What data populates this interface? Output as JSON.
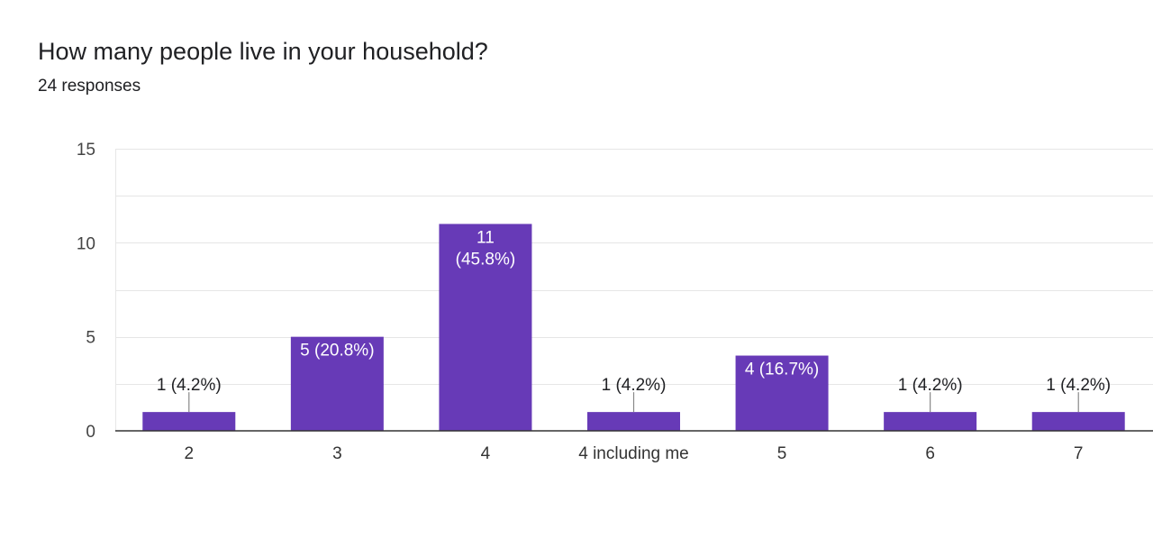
{
  "question": {
    "title": "How many people live in your household?",
    "responses": "24 responses"
  },
  "colors": {
    "bar": "#673ab7",
    "grid": "#e6e6e6",
    "axis": "#333333",
    "label_dark": "#202124",
    "label_light": "#ffffff",
    "leader": "#888888"
  },
  "chart_data": {
    "type": "bar",
    "title": "How many people live in your household?",
    "subtitle": "24 responses",
    "xlabel": "",
    "ylabel": "",
    "ylim": [
      0,
      15
    ],
    "yticks": [
      0,
      5,
      10,
      15
    ],
    "grid": true,
    "legend": "none",
    "categories": [
      "2",
      "3",
      "4",
      "4 including me",
      "5",
      "6",
      "7"
    ],
    "values": [
      1,
      5,
      11,
      1,
      4,
      1,
      1
    ],
    "data_labels": [
      [
        "1 (4.2%)"
      ],
      [
        "5 (20.8%)"
      ],
      [
        "11",
        "(45.8%)"
      ],
      [
        "1 (4.2%)"
      ],
      [
        "4 (16.7%)"
      ],
      [
        "1 (4.2%)"
      ],
      [
        "1 (4.2%)"
      ]
    ]
  }
}
